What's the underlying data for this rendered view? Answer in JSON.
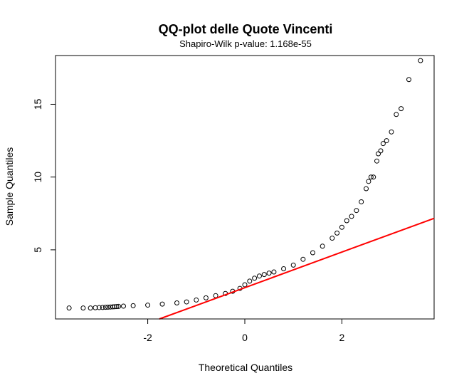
{
  "chart_data": {
    "type": "scatter",
    "title": "QQ-plot delle Quote Vincenti",
    "subtitle": "Shapiro-Wilk p-value: 1.168e-55",
    "xlabel": "Theoretical Quantiles",
    "ylabel": "Sample Quantiles",
    "xlim": [
      -3.9,
      3.9
    ],
    "ylim": [
      0.25,
      18.35
    ],
    "x_ticks": [
      -2,
      0,
      2
    ],
    "y_ticks": [
      5,
      10,
      15
    ],
    "grid": false,
    "legend": "none",
    "point_color": "#000000",
    "reference_line": {
      "color": "#ff0000",
      "slope": 1.222,
      "intercept": 2.4
    },
    "x": [
      -3.62,
      -3.33,
      -3.18,
      -3.08,
      -3.0,
      -2.93,
      -2.87,
      -2.82,
      -2.77,
      -2.72,
      -2.68,
      -2.64,
      -2.6,
      -2.5,
      -2.3,
      -2.0,
      -1.7,
      -1.4,
      -1.2,
      -1.0,
      -0.8,
      -0.6,
      -0.4,
      -0.25,
      -0.1,
      0.0,
      0.1,
      0.2,
      0.3,
      0.4,
      0.5,
      0.6,
      0.8,
      1.0,
      1.2,
      1.4,
      1.6,
      1.8,
      1.9,
      2.0,
      2.1,
      2.2,
      2.3,
      2.4,
      2.5,
      2.55,
      2.6,
      2.65,
      2.72,
      2.75,
      2.8,
      2.85,
      2.92,
      3.02,
      3.12,
      3.22,
      3.38,
      3.62
    ],
    "y": [
      1.0,
      1.0,
      1.0,
      1.02,
      1.03,
      1.04,
      1.05,
      1.06,
      1.07,
      1.08,
      1.09,
      1.1,
      1.11,
      1.13,
      1.16,
      1.2,
      1.27,
      1.35,
      1.42,
      1.55,
      1.7,
      1.85,
      2.0,
      2.15,
      2.35,
      2.6,
      2.85,
      3.05,
      3.2,
      3.3,
      3.4,
      3.48,
      3.7,
      3.95,
      4.35,
      4.8,
      5.25,
      5.8,
      6.15,
      6.55,
      7.0,
      7.3,
      7.7,
      8.3,
      9.2,
      9.7,
      10.0,
      10.0,
      11.1,
      11.6,
      11.8,
      12.3,
      12.5,
      13.1,
      14.3,
      14.7,
      16.7,
      18.0
    ]
  }
}
